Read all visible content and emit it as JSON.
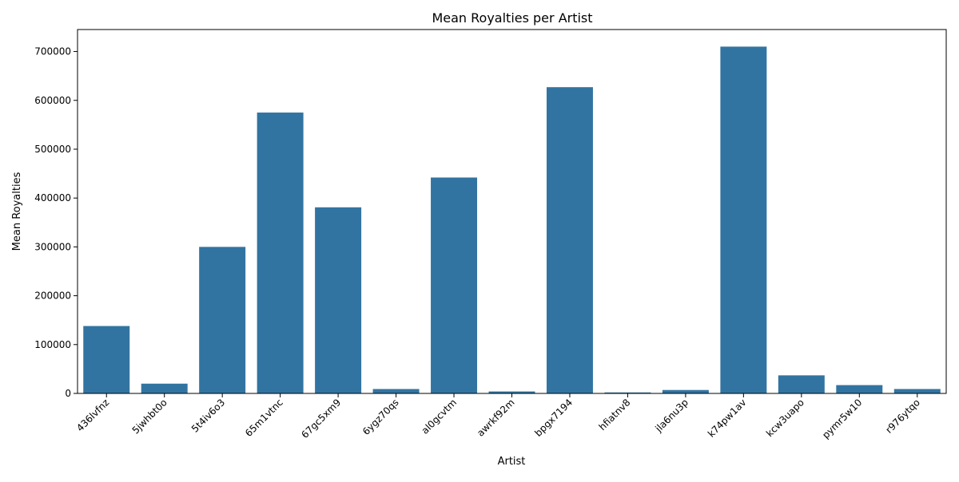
{
  "chart_data": {
    "type": "bar",
    "title": "Mean Royalties per Artist",
    "xlabel": "Artist",
    "ylabel": "Mean Royalties",
    "categories": [
      "436lvfnz",
      "5jwhbt0o",
      "5t4iv6o3",
      "65m1vtnc",
      "67gc5xm9",
      "6ygz70qs",
      "al0gcvtm",
      "awrkf92m",
      "bpgx7194",
      "hfiatnv8",
      "jla6nu3p",
      "k74pw1av",
      "kcw3uapo",
      "pymr5w10",
      "r976ytqo"
    ],
    "values": [
      138000,
      20000,
      300000,
      575000,
      381000,
      9000,
      442000,
      4000,
      627000,
      2000,
      7000,
      710000,
      37000,
      17000,
      9000
    ],
    "ylim": [
      0,
      745000
    ],
    "yticks": [
      0,
      100000,
      200000,
      300000,
      400000,
      500000,
      600000,
      700000
    ],
    "bar_color": "#3274a1",
    "grid": false
  }
}
